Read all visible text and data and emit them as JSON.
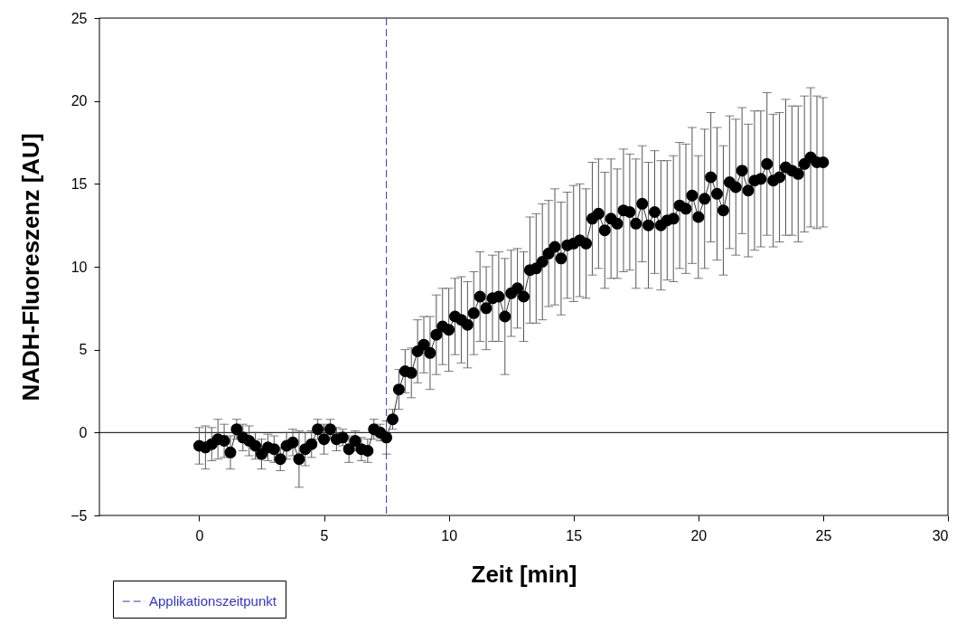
{
  "chart_data": {
    "type": "line",
    "xlabel": "Zeit [min]",
    "ylabel": "NADH-Fluoreszenz [AU]",
    "x": [
      0,
      0.25,
      0.5,
      0.75,
      1,
      1.25,
      1.5,
      1.75,
      2,
      2.25,
      2.5,
      2.75,
      3,
      3.25,
      3.5,
      3.75,
      4,
      4.25,
      4.5,
      4.75,
      5,
      5.25,
      5.5,
      5.75,
      6,
      6.25,
      6.5,
      6.75,
      7,
      7.25,
      7.5,
      7.75,
      8,
      8.25,
      8.5,
      8.75,
      9,
      9.25,
      9.5,
      9.75,
      10,
      10.25,
      10.5,
      10.75,
      11,
      11.25,
      11.5,
      11.75,
      12,
      12.25,
      12.5,
      12.75,
      13,
      13.25,
      13.5,
      13.75,
      14,
      14.25,
      14.5,
      14.75,
      15,
      15.25,
      15.5,
      15.75,
      16,
      16.25,
      16.5,
      16.75,
      17,
      17.25,
      17.5,
      17.75,
      18,
      18.25,
      18.5,
      18.75,
      19,
      19.25,
      19.5,
      19.75,
      20,
      20.25,
      20.5,
      20.75,
      21,
      21.25,
      21.5,
      21.75,
      22,
      22.25,
      22.5,
      22.75,
      23,
      23.25,
      23.5,
      23.75,
      24,
      24.25,
      24.5,
      24.75,
      25
    ],
    "series": [
      {
        "color": "#000000",
        "values": [
          -0.8,
          -0.9,
          -0.7,
          -0.4,
          -0.5,
          -1.2,
          0.2,
          -0.3,
          -0.5,
          -0.8,
          -1.3,
          -0.9,
          -1.0,
          -1.6,
          -0.8,
          -0.6,
          -1.6,
          -1.0,
          -0.7,
          0.2,
          -0.4,
          0.2,
          -0.4,
          -0.3,
          -1.0,
          -0.5,
          -1.0,
          -1.1,
          0.2,
          0.0,
          -0.3,
          0.8,
          2.6,
          3.7,
          3.6,
          4.9,
          5.3,
          4.8,
          5.9,
          6.4,
          6.2,
          7.0,
          6.8,
          6.5,
          7.2,
          8.2,
          7.5,
          8.1,
          8.2,
          7.0,
          8.4,
          8.7,
          8.2,
          9.8,
          9.9,
          10.3,
          10.8,
          11.2,
          10.5,
          11.3,
          11.4,
          11.6,
          11.4,
          12.9,
          13.2,
          12.2,
          12.9,
          12.6,
          13.4,
          13.3,
          12.6,
          13.8,
          12.5,
          13.3,
          12.5,
          12.8,
          12.9,
          13.7,
          13.5,
          14.3,
          13.0,
          14.1,
          15.4,
          14.4,
          13.4,
          15.1,
          14.8,
          15.8,
          14.6,
          15.2,
          15.3,
          16.2,
          15.2,
          15.4,
          16.0,
          15.8,
          15.6,
          16.2,
          16.6,
          16.3,
          16.3
        ],
        "errors": [
          1.1,
          1.3,
          1.0,
          1.2,
          1.0,
          1.0,
          0.6,
          0.8,
          0.9,
          0.8,
          0.9,
          0.8,
          0.8,
          0.7,
          0.8,
          0.8,
          1.7,
          1.0,
          0.8,
          0.6,
          0.9,
          0.6,
          0.7,
          0.5,
          0.8,
          0.6,
          0.7,
          0.7,
          0.6,
          0.5,
          1.0,
          0.6,
          1.2,
          1.3,
          1.5,
          1.9,
          1.7,
          2.2,
          2.4,
          2.3,
          2.5,
          2.3,
          2.6,
          2.6,
          2.5,
          2.7,
          2.5,
          2.6,
          2.7,
          3.5,
          2.6,
          2.4,
          2.7,
          3.2,
          3.3,
          3.5,
          3.2,
          3.5,
          3.4,
          3.2,
          3.5,
          3.4,
          3.3,
          3.4,
          3.3,
          3.5,
          3.6,
          3.3,
          3.7,
          3.5,
          3.9,
          3.5,
          3.8,
          3.7,
          3.9,
          3.6,
          3.8,
          3.8,
          3.9,
          4.1,
          3.7,
          4.2,
          3.9,
          4.0,
          3.9,
          4.0,
          4.1,
          3.8,
          4.0,
          4.2,
          4.1,
          4.3,
          4.0,
          3.9,
          4.1,
          3.9,
          4.1,
          4.1,
          4.2,
          4.0,
          3.9
        ]
      }
    ],
    "xlim": [
      -4,
      30
    ],
    "xticks": [
      0,
      5,
      10,
      15,
      20,
      25,
      30
    ],
    "ylim": [
      -5,
      25
    ],
    "yticks": [
      -5,
      0,
      5,
      10,
      15,
      20,
      25
    ],
    "ref_lines": [
      {
        "axis": "y",
        "value": 0,
        "color": "#000000",
        "line_style": "solid"
      },
      {
        "axis": "x",
        "value": 7.5,
        "label": "Applikationszeitpunkt",
        "color": "#3333cc",
        "line_style": "dashed"
      }
    ],
    "grid": false,
    "legend": "bottom left",
    "marker": "circle",
    "line_style": "solid"
  }
}
